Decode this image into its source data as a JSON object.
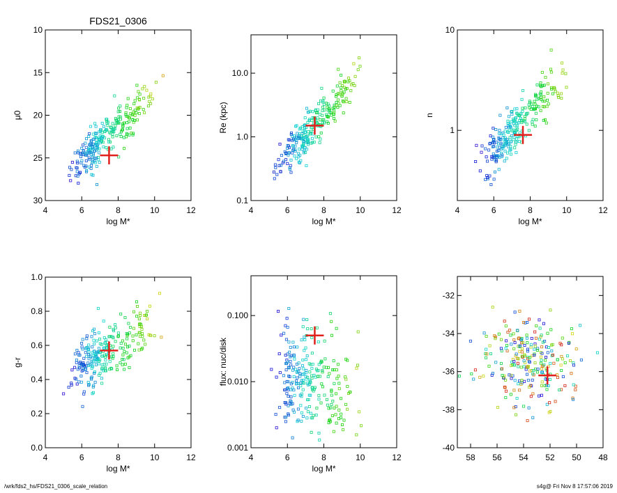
{
  "footer": {
    "left": "/wrk/fds2_hs/FDS21_0306_scale_relation",
    "right": "s4g@  Fri Nov  8 17:57:06 2019"
  },
  "colors": {
    "marker": "#e0201c"
  },
  "chart_data": [
    {
      "type": "scatter",
      "title": "FDS21_0306",
      "xlabel": "log M*",
      "ylabel": "μ0",
      "xlim": [
        4,
        12
      ],
      "ylim": [
        30,
        10
      ],
      "xticks": [
        "4",
        "6",
        "8",
        "10",
        "12"
      ],
      "yticks": [
        "10",
        "15",
        "20",
        "25",
        "30"
      ],
      "marker": {
        "x": 7.5,
        "y": 24.7
      }
    },
    {
      "type": "scatter",
      "title": "",
      "xlabel": "log M*",
      "ylabel": "Re (kpc)",
      "yscale": "log",
      "xlim": [
        4,
        12
      ],
      "ylim": [
        0.1,
        40
      ],
      "xticks": [
        "4",
        "6",
        "8",
        "10",
        "12"
      ],
      "ytick_values": [
        0.1,
        1.0,
        10.0
      ],
      "yticks": [
        "0.1",
        "1.0",
        "10.0"
      ],
      "marker": {
        "x": 7.5,
        "y": 1.5
      }
    },
    {
      "type": "scatter",
      "title": "",
      "xlabel": "log M*",
      "ylabel": "n",
      "yscale": "log",
      "xlim": [
        4,
        12
      ],
      "ylim": [
        0.2,
        10
      ],
      "xticks": [
        "4",
        "6",
        "8",
        "10",
        "12"
      ],
      "ytick_values": [
        1,
        10
      ],
      "yticks": [
        "1",
        "10"
      ],
      "marker": {
        "x": 7.6,
        "y": 0.9
      }
    },
    {
      "type": "scatter",
      "title": "",
      "xlabel": "log M*",
      "ylabel": "g-r",
      "xlim": [
        4,
        12
      ],
      "ylim": [
        0.0,
        1.0
      ],
      "xticks": [
        "4",
        "6",
        "8",
        "10",
        "12"
      ],
      "yticks": [
        "0.0",
        "0.2",
        "0.4",
        "0.6",
        "0.8",
        "1.0"
      ],
      "marker": {
        "x": 7.5,
        "y": 0.57
      }
    },
    {
      "type": "scatter",
      "title": "",
      "xlabel": "log M*",
      "ylabel": "flux: nuc/disk",
      "yscale": "log",
      "xlim": [
        4,
        12
      ],
      "ylim": [
        0.001,
        0.4
      ],
      "xticks": [
        "4",
        "6",
        "8",
        "10",
        "12"
      ],
      "ytick_values": [
        0.001,
        0.01,
        0.1
      ],
      "yticks": [
        "0.001",
        "0.010",
        "0.100"
      ],
      "marker": {
        "x": 7.5,
        "y": 0.05
      }
    },
    {
      "type": "scatter",
      "title": "",
      "xlabel": "",
      "ylabel": "",
      "xlim": [
        59,
        48
      ],
      "ylim": [
        -40,
        -31
      ],
      "xticks": [
        "58",
        "56",
        "54",
        "52",
        "50",
        "48"
      ],
      "yticks": [
        "-40",
        "-38",
        "-36",
        "-34",
        "-32"
      ],
      "marker": {
        "x": 52.2,
        "y": -36.2
      }
    }
  ]
}
